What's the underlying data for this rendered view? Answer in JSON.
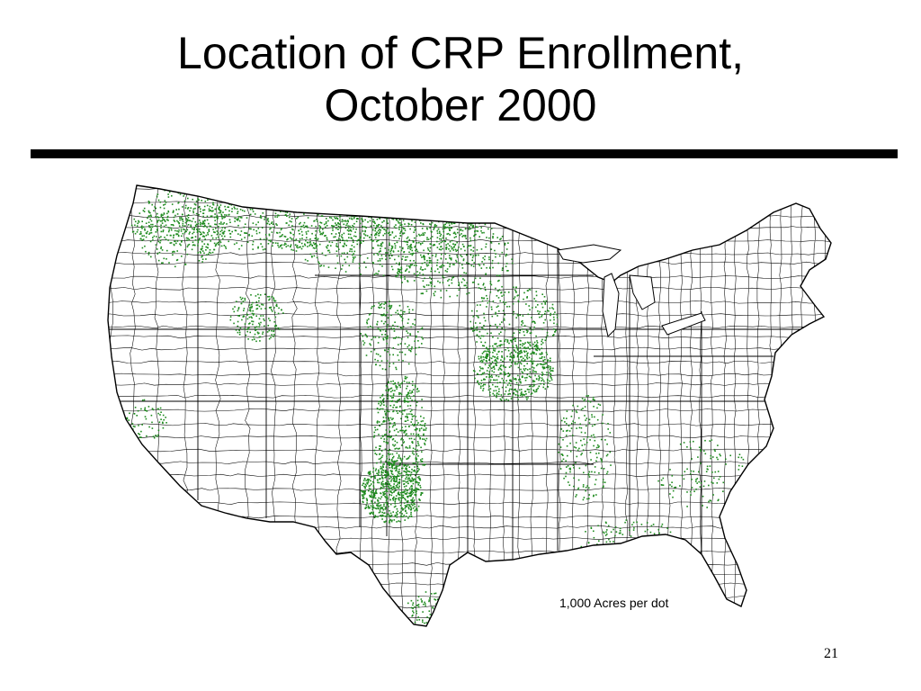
{
  "slide": {
    "title_line1": "Location of CRP Enrollment,",
    "title_line2": "October 2000",
    "page_number": "21"
  },
  "map": {
    "subject": "Conservation Reserve Program enrollment by county, contiguous United States",
    "legend_label": "1,000 Acres per dot",
    "dot_color": "#1e8a1e",
    "boundary_color": "#000000",
    "background_color": "#ffffff"
  }
}
